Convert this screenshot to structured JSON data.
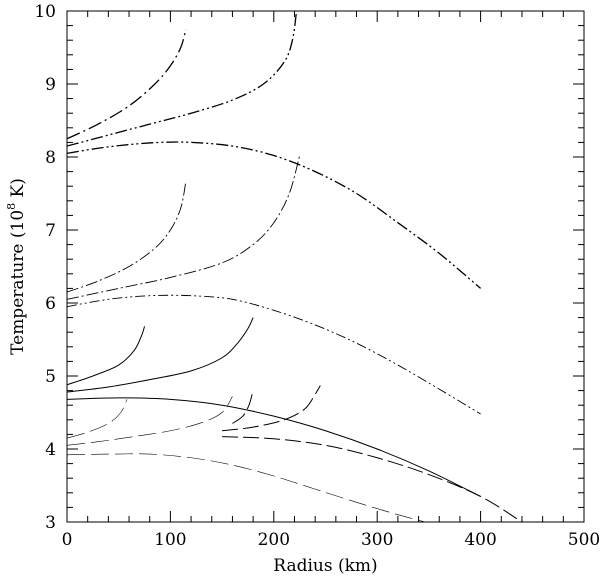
{
  "chart_data": {
    "type": "line",
    "title": "",
    "xlabel": "Radius (km)",
    "ylabel_parts": {
      "prefix": "Temperature (10",
      "exponent": "8",
      "suffix": " K)"
    },
    "xlim": [
      0,
      500
    ],
    "ylim": [
      3,
      10
    ],
    "x_ticks": [
      0,
      100,
      200,
      300,
      400,
      500
    ],
    "x_tick_labels": [
      "0",
      "100",
      "200",
      "300",
      "400",
      "500"
    ],
    "y_ticks": [
      3,
      4,
      5,
      6,
      7,
      8,
      9,
      10
    ],
    "y_tick_labels": [
      "3",
      "4",
      "5",
      "6",
      "7",
      "8",
      "9",
      "10"
    ],
    "grid": false,
    "legend": "none",
    "series": [
      {
        "style": "dash-dot-dot",
        "width": 1.3,
        "color": "#000000",
        "x": [
          0,
          30,
          60,
          90,
          120,
          160,
          200,
          240,
          280,
          320,
          360,
          400
        ],
        "y": [
          8.05,
          8.12,
          8.17,
          8.2,
          8.2,
          8.15,
          8.02,
          7.8,
          7.5,
          7.1,
          6.68,
          6.2
        ]
      },
      {
        "style": "dash-dot-dot",
        "width": 1.3,
        "color": "#000000",
        "x": [
          0,
          40,
          80,
          120,
          160,
          190,
          210,
          218,
          222
        ],
        "y": [
          8.15,
          8.3,
          8.45,
          8.6,
          8.78,
          9.0,
          9.3,
          9.6,
          10.0
        ]
      },
      {
        "style": "dash-dot",
        "width": 1.3,
        "color": "#000000",
        "x": [
          0,
          30,
          60,
          85,
          100,
          110,
          115
        ],
        "y": [
          8.25,
          8.45,
          8.7,
          9.0,
          9.25,
          9.5,
          9.75
        ]
      },
      {
        "style": "dash-dot-dot-thin",
        "width": 0.9,
        "color": "#000000",
        "x": [
          0,
          40,
          80,
          120,
          160,
          200,
          240,
          280,
          320,
          360,
          400
        ],
        "y": [
          5.95,
          6.05,
          6.1,
          6.1,
          6.05,
          5.9,
          5.7,
          5.45,
          5.15,
          4.82,
          4.48
        ]
      },
      {
        "style": "dash-dot-thin",
        "width": 0.9,
        "color": "#000000",
        "x": [
          0,
          50,
          100,
          150,
          180,
          200,
          215,
          225
        ],
        "y": [
          6.05,
          6.2,
          6.35,
          6.55,
          6.8,
          7.1,
          7.5,
          8.02
        ]
      },
      {
        "style": "dash-dot-thin",
        "width": 0.9,
        "color": "#000000",
        "x": [
          0,
          30,
          60,
          85,
          100,
          110,
          115
        ],
        "y": [
          6.15,
          6.3,
          6.5,
          6.75,
          7.0,
          7.3,
          7.67
        ]
      },
      {
        "style": "solid",
        "width": 1.0,
        "color": "#000000",
        "x": [
          0,
          50,
          100,
          150,
          200,
          250,
          300,
          350,
          400
        ],
        "y": [
          4.68,
          4.7,
          4.68,
          4.6,
          4.45,
          4.25,
          4.0,
          3.7,
          3.35
        ]
      },
      {
        "style": "solid",
        "width": 1.0,
        "color": "#000000",
        "x": [
          0,
          40,
          80,
          120,
          150,
          165,
          175,
          180
        ],
        "y": [
          4.78,
          4.85,
          4.95,
          5.07,
          5.25,
          5.45,
          5.65,
          5.8
        ]
      },
      {
        "style": "solid",
        "width": 1.0,
        "color": "#000000",
        "x": [
          0,
          25,
          50,
          65,
          72,
          75
        ],
        "y": [
          4.88,
          5.0,
          5.15,
          5.35,
          5.55,
          5.68
        ]
      },
      {
        "style": "long-dash",
        "width": 1.0,
        "color": "#000000",
        "x": [
          150,
          200,
          250,
          300,
          350,
          400,
          440
        ],
        "y": [
          4.17,
          4.14,
          4.05,
          3.88,
          3.65,
          3.35,
          3.0
        ]
      },
      {
        "style": "long-dash",
        "width": 1.0,
        "color": "#000000",
        "x": [
          150,
          180,
          210,
          230,
          240,
          245
        ],
        "y": [
          4.25,
          4.3,
          4.4,
          4.55,
          4.75,
          4.87
        ]
      },
      {
        "style": "long-dash",
        "width": 1.0,
        "color": "#000000",
        "x": [
          160,
          170,
          176,
          179
        ],
        "y": [
          4.35,
          4.45,
          4.6,
          4.75
        ]
      },
      {
        "style": "long-dash-thin",
        "width": 0.6,
        "color": "#555555",
        "x": [
          0,
          40,
          80,
          120,
          160,
          200,
          240,
          280,
          320,
          360,
          400
        ],
        "y": [
          3.92,
          3.93,
          3.93,
          3.88,
          3.78,
          3.63,
          3.45,
          3.27,
          3.1,
          2.95,
          2.8
        ]
      },
      {
        "style": "long-dash-thin",
        "width": 0.6,
        "color": "#555555",
        "x": [
          0,
          30,
          60,
          100,
          130,
          150,
          160
        ],
        "y": [
          4.05,
          4.1,
          4.16,
          4.25,
          4.36,
          4.5,
          4.72
        ]
      },
      {
        "style": "long-dash-thin",
        "width": 0.6,
        "color": "#555555",
        "x": [
          0,
          20,
          40,
          52,
          58
        ],
        "y": [
          4.15,
          4.23,
          4.35,
          4.5,
          4.68
        ]
      }
    ]
  }
}
